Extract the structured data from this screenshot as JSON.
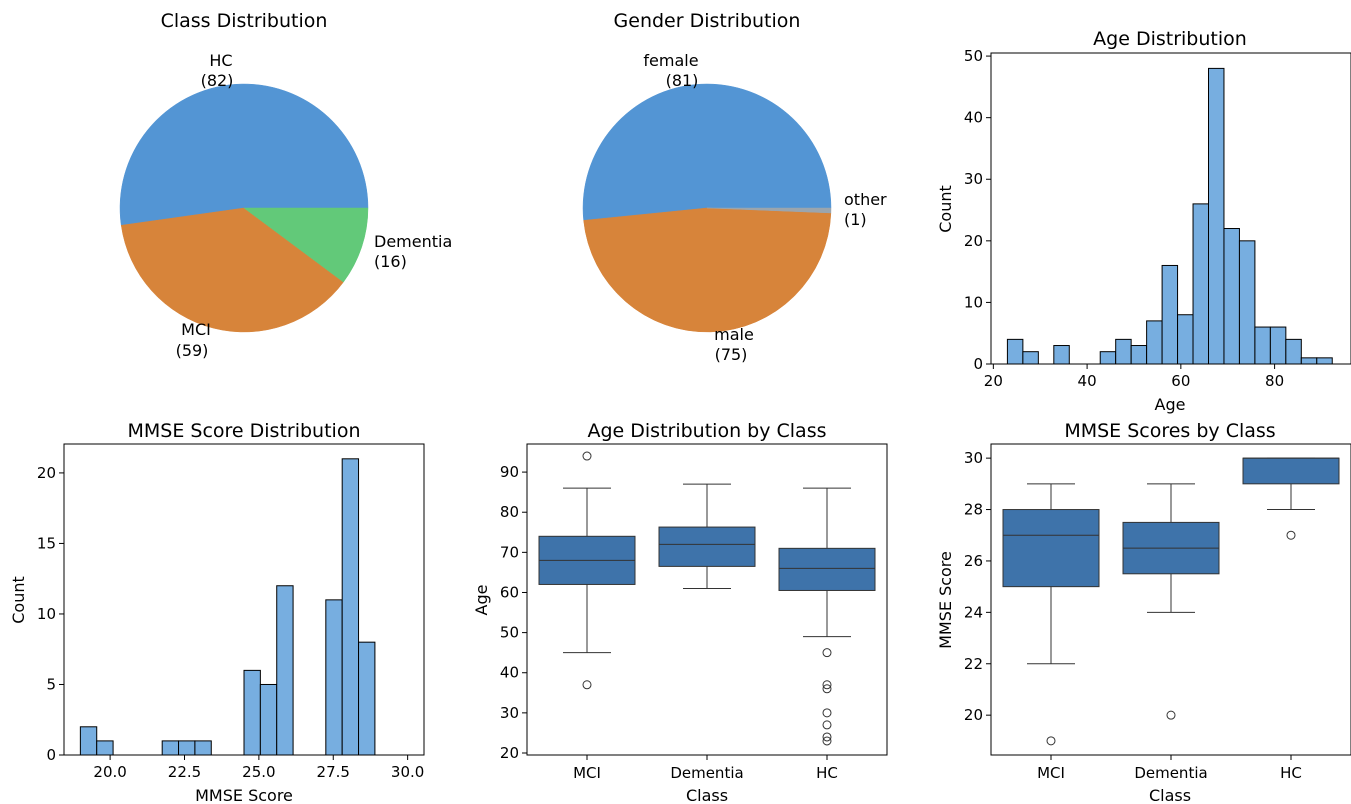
{
  "chart_data": [
    {
      "type": "pie",
      "title": "Class Distribution",
      "slices": [
        {
          "label": "HC",
          "count_text": "(82)",
          "value": 82
        },
        {
          "label": "MCI",
          "count_text": "(59)",
          "value": 59
        },
        {
          "label": "Dementia",
          "count_text": "(16)",
          "value": 16
        }
      ],
      "colors": [
        "#5395d4",
        "#d7843a",
        "#62c979"
      ]
    },
    {
      "type": "pie",
      "title": "Gender Distribution",
      "slices": [
        {
          "label": "female",
          "count_text": "(81)",
          "value": 81
        },
        {
          "label": "male",
          "count_text": "(75)",
          "value": 75
        },
        {
          "label": "other",
          "count_text": "(1)",
          "value": 1
        }
      ],
      "colors": [
        "#5395d4",
        "#d7843a",
        "#9aa5ae"
      ]
    },
    {
      "type": "bar",
      "subtype": "histogram",
      "title": "Age Distribution",
      "xlabel": "Age",
      "ylabel": "Count",
      "xlim": [
        19.5,
        96.3
      ],
      "ylim": [
        0,
        50.5
      ],
      "xticks": [
        20,
        40,
        60,
        80
      ],
      "yticks": [
        0,
        10,
        20,
        30,
        40,
        50
      ],
      "bin_edges": [
        23,
        26.3,
        29.6,
        32.9,
        36.2,
        39.5,
        42.8,
        46.1,
        49.4,
        52.7,
        56,
        59.3,
        62.6,
        65.9,
        69.2,
        72.5,
        75.8,
        79.1,
        82.4,
        85.7,
        89,
        92.3,
        95
      ],
      "counts": [
        4,
        2,
        0,
        3,
        0,
        0,
        2,
        4,
        3,
        7,
        16,
        8,
        26,
        48,
        22,
        20,
        6,
        6,
        4,
        1,
        1,
        0
      ],
      "color": "#77aee0"
    },
    {
      "type": "bar",
      "subtype": "histogram",
      "title": "MMSE Score Distribution",
      "xlabel": "MMSE Score",
      "ylabel": "Count",
      "xlim": [
        18.45,
        30.55
      ],
      "ylim": [
        0,
        22.05
      ],
      "xticks": [
        "20.0",
        "22.5",
        "25.0",
        "27.5",
        "30.0"
      ],
      "xtick_values": [
        20,
        22.5,
        25,
        27.5,
        30
      ],
      "yticks": [
        0,
        5,
        10,
        15,
        20
      ],
      "bin_edges": [
        19,
        19.55,
        20.1,
        20.65,
        21.2,
        21.75,
        22.3,
        22.85,
        23.4,
        23.95,
        24.5,
        25.05,
        25.6,
        26.15,
        26.7,
        27.25,
        27.8,
        28.35,
        28.9,
        29.45,
        30
      ],
      "counts": [
        2,
        1,
        0,
        0,
        0,
        1,
        1,
        1,
        0,
        0,
        6,
        5,
        12,
        0,
        0,
        11,
        21,
        8,
        0,
        0
      ],
      "color": "#77aee0"
    },
    {
      "type": "box",
      "title": "Age Distribution by Class",
      "xlabel": "Class",
      "ylabel": "Age",
      "categories": [
        "MCI",
        "Dementia",
        "HC"
      ],
      "ylim": [
        19.5,
        97
      ],
      "yticks": [
        20,
        30,
        40,
        50,
        60,
        70,
        80,
        90
      ],
      "boxes": [
        {
          "category": "MCI",
          "whisker_low": 45,
          "q1": 62,
          "median": 68,
          "q3": 74,
          "whisker_high": 86,
          "outliers": [
            94,
            37
          ]
        },
        {
          "category": "Dementia",
          "whisker_low": 61,
          "q1": 66.5,
          "median": 72,
          "q3": 76.3,
          "whisker_high": 87,
          "outliers": []
        },
        {
          "category": "HC",
          "whisker_low": 49,
          "q1": 60.5,
          "median": 66,
          "q3": 71,
          "whisker_high": 86,
          "outliers": [
            45,
            37,
            36,
            30,
            27,
            24,
            23
          ]
        }
      ],
      "color": "#3e73aa"
    },
    {
      "type": "box",
      "title": "MMSE Scores by Class",
      "xlabel": "Class",
      "ylabel": "MMSE Score",
      "categories": [
        "MCI",
        "Dementia",
        "HC"
      ],
      "ylim": [
        18.45,
        30.55
      ],
      "yticks": [
        20,
        22,
        24,
        26,
        28,
        30
      ],
      "boxes": [
        {
          "category": "MCI",
          "whisker_low": 22,
          "q1": 25,
          "median": 27,
          "q3": 28,
          "whisker_high": 29,
          "outliers": [
            19
          ]
        },
        {
          "category": "Dementia",
          "whisker_low": 24,
          "q1": 25.5,
          "median": 26.5,
          "q3": 27.5,
          "whisker_high": 29,
          "outliers": [
            20
          ]
        },
        {
          "category": "HC",
          "whisker_low": 28,
          "q1": 29,
          "median": 30,
          "q3": 30,
          "whisker_high": 30,
          "outliers": [
            27
          ]
        }
      ],
      "color": "#3e73aa"
    }
  ]
}
